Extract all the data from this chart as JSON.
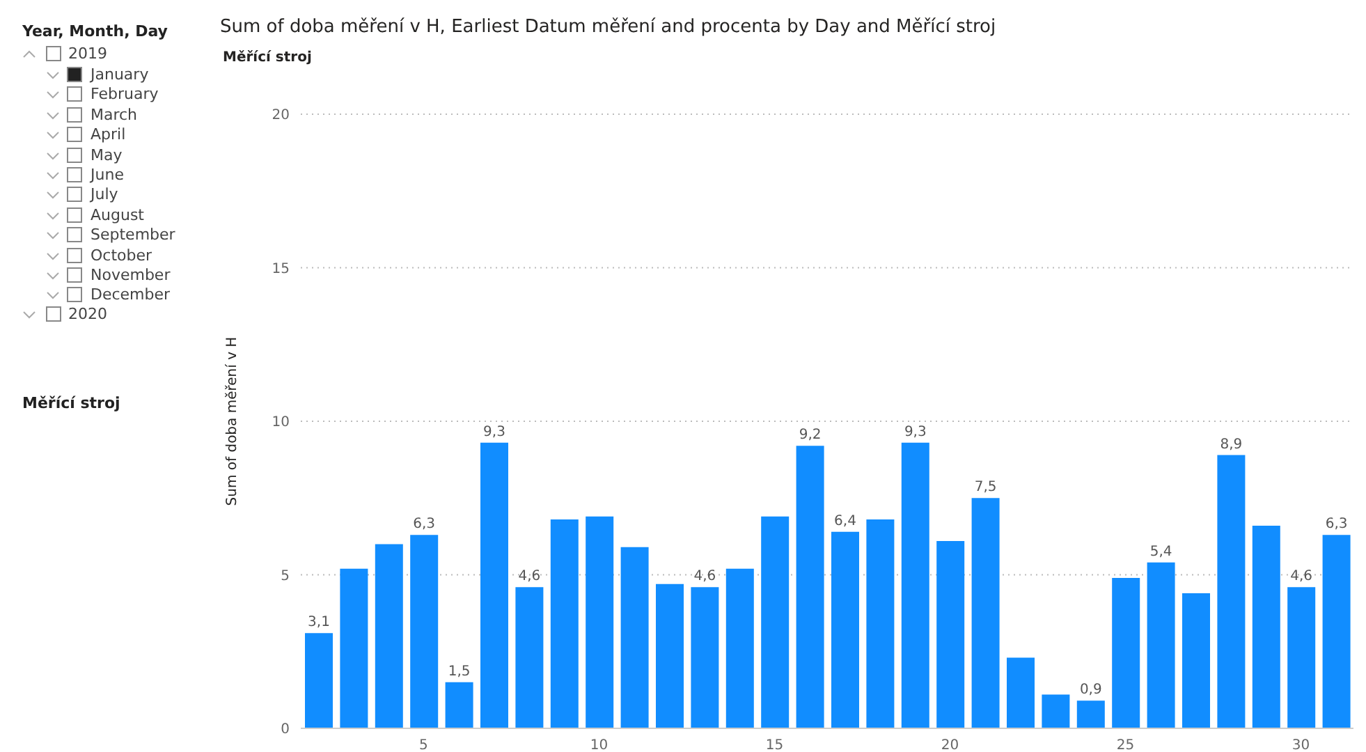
{
  "chart_data": {
    "type": "bar",
    "title": "Sum of doba měření v H, Earliest Datum měření and procenta by Day and Měřící stroj",
    "ylabel": "Sum of doba měření v H",
    "legend_title": "Měřící stroj",
    "x": [
      2,
      3,
      4,
      5,
      6,
      7,
      8,
      9,
      10,
      11,
      12,
      13,
      14,
      15,
      16,
      17,
      18,
      19,
      20,
      21,
      22,
      23,
      24,
      25,
      26,
      27,
      28,
      29,
      30,
      31
    ],
    "values": [
      3.1,
      5.2,
      6.0,
      6.3,
      1.5,
      9.3,
      4.6,
      6.8,
      6.9,
      5.9,
      4.7,
      4.6,
      5.2,
      6.9,
      9.2,
      6.4,
      6.8,
      9.3,
      6.1,
      7.5,
      2.3,
      1.1,
      0.9,
      4.9,
      5.4,
      4.4,
      8.9,
      6.6,
      4.6,
      6.3
    ],
    "value_labels": [
      "3,1",
      null,
      null,
      "6,3",
      "1,5",
      "9,3",
      "4,6",
      null,
      null,
      null,
      null,
      "4,6",
      null,
      null,
      "9,2",
      "6,4",
      null,
      "9,3",
      null,
      "7,5",
      null,
      null,
      "0,9",
      null,
      "5,4",
      null,
      "8,9",
      null,
      "4,6",
      "6,3"
    ],
    "color": "#118dff",
    "xlim": [
      1.5,
      31.5
    ],
    "xticks": [
      5,
      10,
      15,
      20,
      25,
      30
    ],
    "ylim": [
      0,
      20
    ],
    "yticks": [
      0,
      5,
      10,
      15,
      20
    ],
    "grid": "y",
    "annotations": [
      {
        "text": "Year, Month, Day"
      },
      {
        "text": "2019"
      },
      {
        "text": "January"
      },
      {
        "text": "February"
      },
      {
        "text": "March"
      },
      {
        "text": "April"
      },
      {
        "text": "May"
      },
      {
        "text": "June"
      },
      {
        "text": "July"
      },
      {
        "text": "August"
      },
      {
        "text": "September"
      },
      {
        "text": "October"
      },
      {
        "text": "November"
      },
      {
        "text": "December"
      },
      {
        "text": "2020"
      },
      {
        "text": "Měřící stroj"
      }
    ]
  }
}
